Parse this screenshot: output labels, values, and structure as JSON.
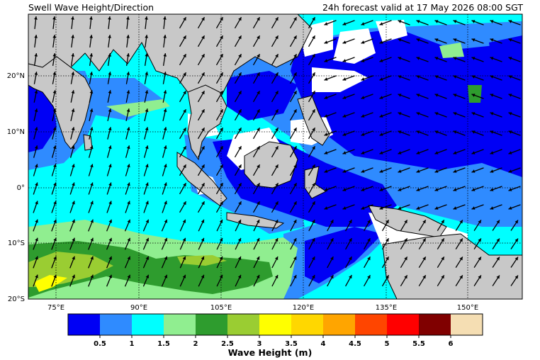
{
  "header": {
    "title": "Swell Wave Height/Direction",
    "valid": "24h forecast valid at 17 May 2026 08:00 SGT"
  },
  "map": {
    "lon_ticks": [
      "75°E",
      "90°E",
      "105°E",
      "120°E",
      "135°E",
      "150°E"
    ],
    "lat_ticks": [
      "20°N",
      "10°N",
      "0°",
      "10°S",
      "20°S"
    ],
    "land_color": "#c8c8c8",
    "gridlines": "dotted"
  },
  "colorbar": {
    "title": "Wave Height (m)",
    "tick_labels": [
      "0.5",
      "1",
      "1.5",
      "2",
      "2.5",
      "3",
      "3.5",
      "4",
      "4.5",
      "5",
      "5.5",
      "6"
    ],
    "colors": [
      "#0000f5",
      "#2f8bff",
      "#00ffff",
      "#90ee90",
      "#2e9c2e",
      "#9acd32",
      "#ffff00",
      "#ffd700",
      "#ffa500",
      "#ff4500",
      "#ff0000",
      "#800000",
      "#f5deb3"
    ]
  }
}
